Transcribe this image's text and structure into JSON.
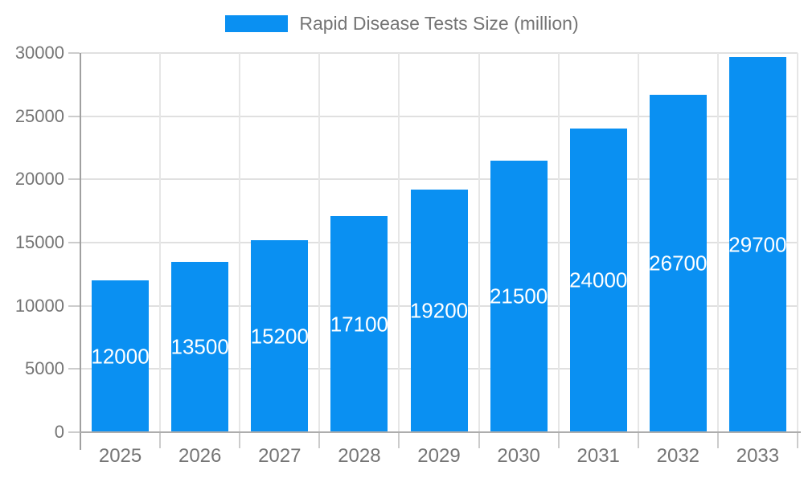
{
  "legend": {
    "label": "Rapid Disease Tests Size (million)"
  },
  "chart_data": {
    "type": "bar",
    "title": "Rapid Disease Tests Size (million)",
    "categories": [
      "2025",
      "2026",
      "2027",
      "2028",
      "2029",
      "2030",
      "2031",
      "2032",
      "2033"
    ],
    "values": [
      12000,
      13500,
      15200,
      17100,
      19200,
      21500,
      24000,
      26700,
      29700
    ],
    "xlabel": "",
    "ylabel": "",
    "ylim": [
      0,
      30000
    ],
    "yticks": [
      0,
      5000,
      10000,
      15000,
      20000,
      25000,
      30000
    ],
    "grid": true,
    "legend_position": "top",
    "value_labels": "inside-center-white",
    "colors": {
      "bar": "#0a90f2",
      "value_label": "#ffffff",
      "axis_text": "#757575",
      "grid_line": "#e0e0e0",
      "axis_line": "#a0a0a0"
    }
  }
}
